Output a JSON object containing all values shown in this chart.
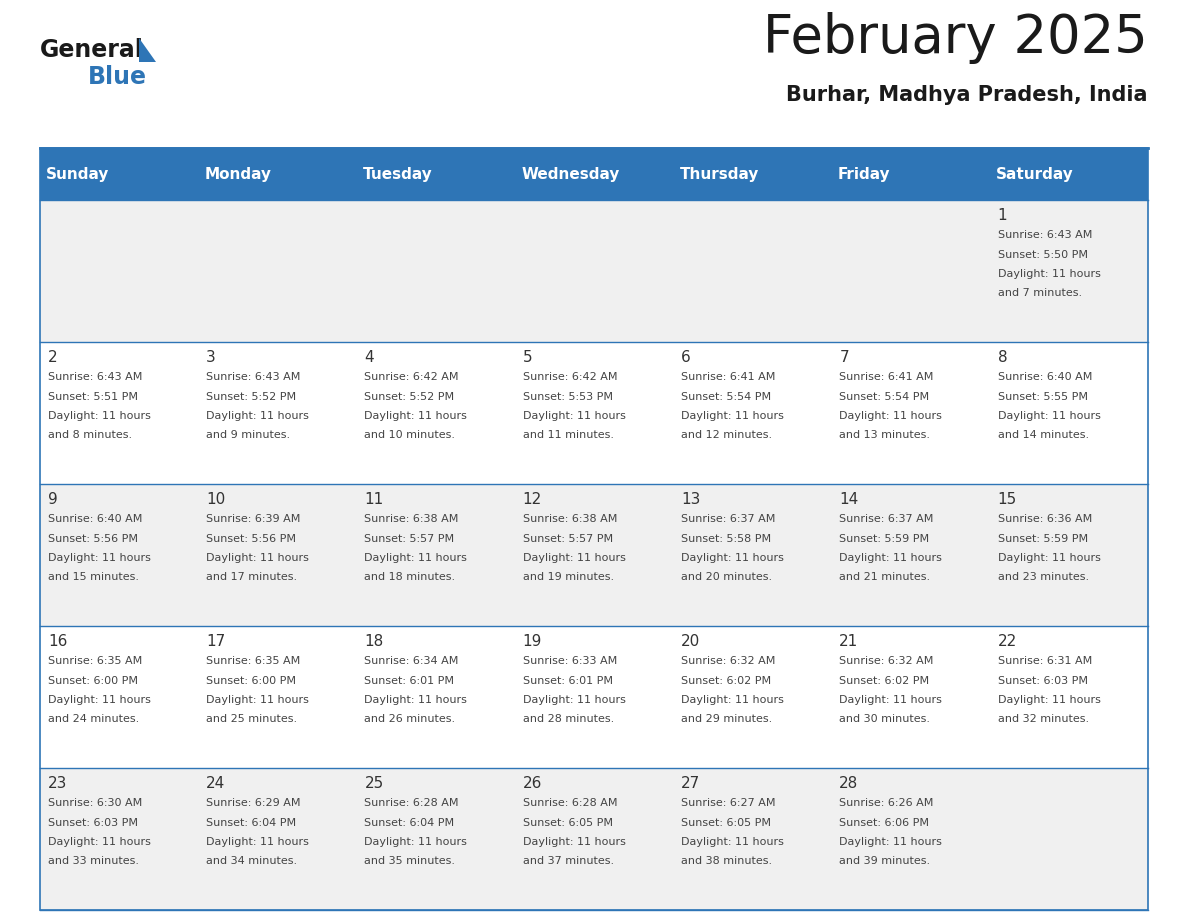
{
  "title": "February 2025",
  "subtitle": "Burhar, Madhya Pradesh, India",
  "header_bg": "#2E75B6",
  "header_text_color": "#FFFFFF",
  "day_names": [
    "Sunday",
    "Monday",
    "Tuesday",
    "Wednesday",
    "Thursday",
    "Friday",
    "Saturday"
  ],
  "alt_row_bg": "#F0F0F0",
  "white_bg": "#FFFFFF",
  "border_color": "#2E75B6",
  "cell_text_color": "#444444",
  "day_num_color": "#333333",
  "calendar_data": [
    [
      null,
      null,
      null,
      null,
      null,
      null,
      {
        "day": 1,
        "sunrise": "6:43 AM",
        "sunset": "5:50 PM",
        "daylight": "11 hours",
        "daylight2": "and 7 minutes."
      }
    ],
    [
      {
        "day": 2,
        "sunrise": "6:43 AM",
        "sunset": "5:51 PM",
        "daylight": "11 hours",
        "daylight2": "and 8 minutes."
      },
      {
        "day": 3,
        "sunrise": "6:43 AM",
        "sunset": "5:52 PM",
        "daylight": "11 hours",
        "daylight2": "and 9 minutes."
      },
      {
        "day": 4,
        "sunrise": "6:42 AM",
        "sunset": "5:52 PM",
        "daylight": "11 hours",
        "daylight2": "and 10 minutes."
      },
      {
        "day": 5,
        "sunrise": "6:42 AM",
        "sunset": "5:53 PM",
        "daylight": "11 hours",
        "daylight2": "and 11 minutes."
      },
      {
        "day": 6,
        "sunrise": "6:41 AM",
        "sunset": "5:54 PM",
        "daylight": "11 hours",
        "daylight2": "and 12 minutes."
      },
      {
        "day": 7,
        "sunrise": "6:41 AM",
        "sunset": "5:54 PM",
        "daylight": "11 hours",
        "daylight2": "and 13 minutes."
      },
      {
        "day": 8,
        "sunrise": "6:40 AM",
        "sunset": "5:55 PM",
        "daylight": "11 hours",
        "daylight2": "and 14 minutes."
      }
    ],
    [
      {
        "day": 9,
        "sunrise": "6:40 AM",
        "sunset": "5:56 PM",
        "daylight": "11 hours",
        "daylight2": "and 15 minutes."
      },
      {
        "day": 10,
        "sunrise": "6:39 AM",
        "sunset": "5:56 PM",
        "daylight": "11 hours",
        "daylight2": "and 17 minutes."
      },
      {
        "day": 11,
        "sunrise": "6:38 AM",
        "sunset": "5:57 PM",
        "daylight": "11 hours",
        "daylight2": "and 18 minutes."
      },
      {
        "day": 12,
        "sunrise": "6:38 AM",
        "sunset": "5:57 PM",
        "daylight": "11 hours",
        "daylight2": "and 19 minutes."
      },
      {
        "day": 13,
        "sunrise": "6:37 AM",
        "sunset": "5:58 PM",
        "daylight": "11 hours",
        "daylight2": "and 20 minutes."
      },
      {
        "day": 14,
        "sunrise": "6:37 AM",
        "sunset": "5:59 PM",
        "daylight": "11 hours",
        "daylight2": "and 21 minutes."
      },
      {
        "day": 15,
        "sunrise": "6:36 AM",
        "sunset": "5:59 PM",
        "daylight": "11 hours",
        "daylight2": "and 23 minutes."
      }
    ],
    [
      {
        "day": 16,
        "sunrise": "6:35 AM",
        "sunset": "6:00 PM",
        "daylight": "11 hours",
        "daylight2": "and 24 minutes."
      },
      {
        "day": 17,
        "sunrise": "6:35 AM",
        "sunset": "6:00 PM",
        "daylight": "11 hours",
        "daylight2": "and 25 minutes."
      },
      {
        "day": 18,
        "sunrise": "6:34 AM",
        "sunset": "6:01 PM",
        "daylight": "11 hours",
        "daylight2": "and 26 minutes."
      },
      {
        "day": 19,
        "sunrise": "6:33 AM",
        "sunset": "6:01 PM",
        "daylight": "11 hours",
        "daylight2": "and 28 minutes."
      },
      {
        "day": 20,
        "sunrise": "6:32 AM",
        "sunset": "6:02 PM",
        "daylight": "11 hours",
        "daylight2": "and 29 minutes."
      },
      {
        "day": 21,
        "sunrise": "6:32 AM",
        "sunset": "6:02 PM",
        "daylight": "11 hours",
        "daylight2": "and 30 minutes."
      },
      {
        "day": 22,
        "sunrise": "6:31 AM",
        "sunset": "6:03 PM",
        "daylight": "11 hours",
        "daylight2": "and 32 minutes."
      }
    ],
    [
      {
        "day": 23,
        "sunrise": "6:30 AM",
        "sunset": "6:03 PM",
        "daylight": "11 hours",
        "daylight2": "and 33 minutes."
      },
      {
        "day": 24,
        "sunrise": "6:29 AM",
        "sunset": "6:04 PM",
        "daylight": "11 hours",
        "daylight2": "and 34 minutes."
      },
      {
        "day": 25,
        "sunrise": "6:28 AM",
        "sunset": "6:04 PM",
        "daylight": "11 hours",
        "daylight2": "and 35 minutes."
      },
      {
        "day": 26,
        "sunrise": "6:28 AM",
        "sunset": "6:05 PM",
        "daylight": "11 hours",
        "daylight2": "and 37 minutes."
      },
      {
        "day": 27,
        "sunrise": "6:27 AM",
        "sunset": "6:05 PM",
        "daylight": "11 hours",
        "daylight2": "and 38 minutes."
      },
      {
        "day": 28,
        "sunrise": "6:26 AM",
        "sunset": "6:06 PM",
        "daylight": "11 hours",
        "daylight2": "and 39 minutes."
      },
      null
    ]
  ]
}
